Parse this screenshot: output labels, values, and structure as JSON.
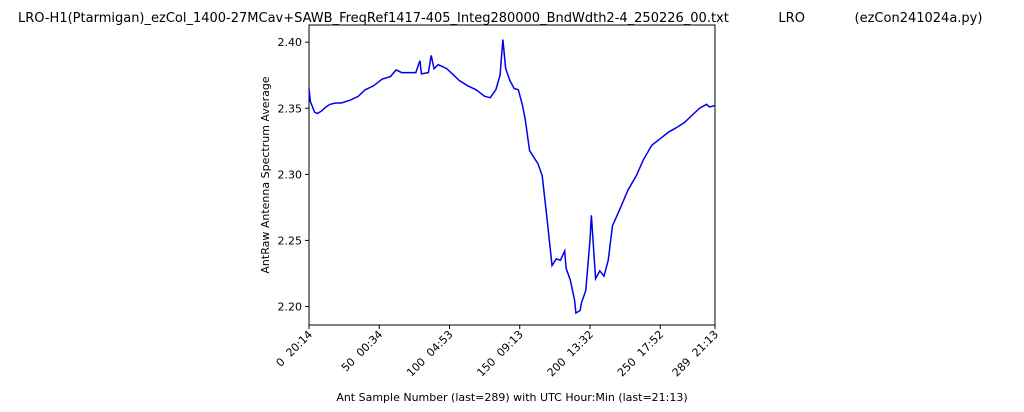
{
  "chart_data": {
    "type": "line",
    "title": "LRO-H1(Ptarmigan)_ezCol_1400-27MCav+SAWB_FreqRef1417-405_Integ280000_BndWdth2-4_250226_00.txt            LRO            (ezCon241024a.py)",
    "x_label": "Ant Sample Number (last=289) with UTC Hour:Min (last=21:13)",
    "y_label": "AntRaw Antenna Spectrum Average",
    "x": [
      0,
      1,
      4,
      6,
      9,
      12,
      15,
      19,
      23,
      29,
      35,
      40,
      46,
      52,
      58,
      62,
      66,
      72,
      76,
      79,
      80,
      85,
      87,
      89,
      92,
      98,
      103,
      107,
      113,
      119,
      125,
      129,
      133,
      136,
      138,
      140,
      143,
      146,
      149,
      152,
      154,
      157,
      160,
      163,
      166,
      168,
      170,
      173,
      176,
      179,
      182,
      183,
      186,
      189,
      190,
      193,
      194,
      197,
      200,
      201,
      204,
      207,
      210,
      213,
      216,
      221,
      227,
      233,
      238,
      244,
      250,
      256,
      261,
      267,
      273,
      278,
      283,
      285,
      289
    ],
    "series": [
      {
        "color": "#0000ee",
        "values": [
          2.365,
          2.355,
          2.347,
          2.346,
          2.348,
          2.351,
          2.353,
          2.354,
          2.354,
          2.356,
          2.359,
          2.364,
          2.367,
          2.372,
          2.374,
          2.379,
          2.377,
          2.377,
          2.377,
          2.386,
          2.376,
          2.377,
          2.39,
          2.38,
          2.383,
          2.38,
          2.375,
          2.371,
          2.367,
          2.364,
          2.359,
          2.358,
          2.364,
          2.375,
          2.402,
          2.38,
          2.371,
          2.365,
          2.364,
          2.352,
          2.341,
          2.318,
          2.313,
          2.308,
          2.299,
          2.28,
          2.261,
          2.231,
          2.236,
          2.235,
          2.242,
          2.229,
          2.22,
          2.205,
          2.195,
          2.197,
          2.203,
          2.212,
          2.25,
          2.269,
          2.221,
          2.227,
          2.223,
          2.235,
          2.261,
          2.273,
          2.288,
          2.299,
          2.311,
          2.322,
          2.327,
          2.332,
          2.335,
          2.339,
          2.345,
          2.35,
          2.353,
          2.351,
          2.352
        ]
      }
    ],
    "xlim": [
      0,
      289
    ],
    "xticks": [
      {
        "value": 0,
        "label": "0  20:14"
      },
      {
        "value": 50,
        "label": "50  00:34"
      },
      {
        "value": 100,
        "label": "100  04:53"
      },
      {
        "value": 150,
        "label": "150  09:13"
      },
      {
        "value": 200,
        "label": "200  13:32"
      },
      {
        "value": 250,
        "label": "250  17:52"
      },
      {
        "value": 289,
        "label": "289  21:13"
      }
    ],
    "ylim": [
      2.186,
      2.413
    ],
    "yticks": [
      {
        "value": 2.2,
        "label": "2.20"
      },
      2.25,
      {
        "value": 2.3,
        "label": "2.30"
      },
      2.35,
      {
        "value": 2.4,
        "label": "2.40"
      }
    ]
  }
}
